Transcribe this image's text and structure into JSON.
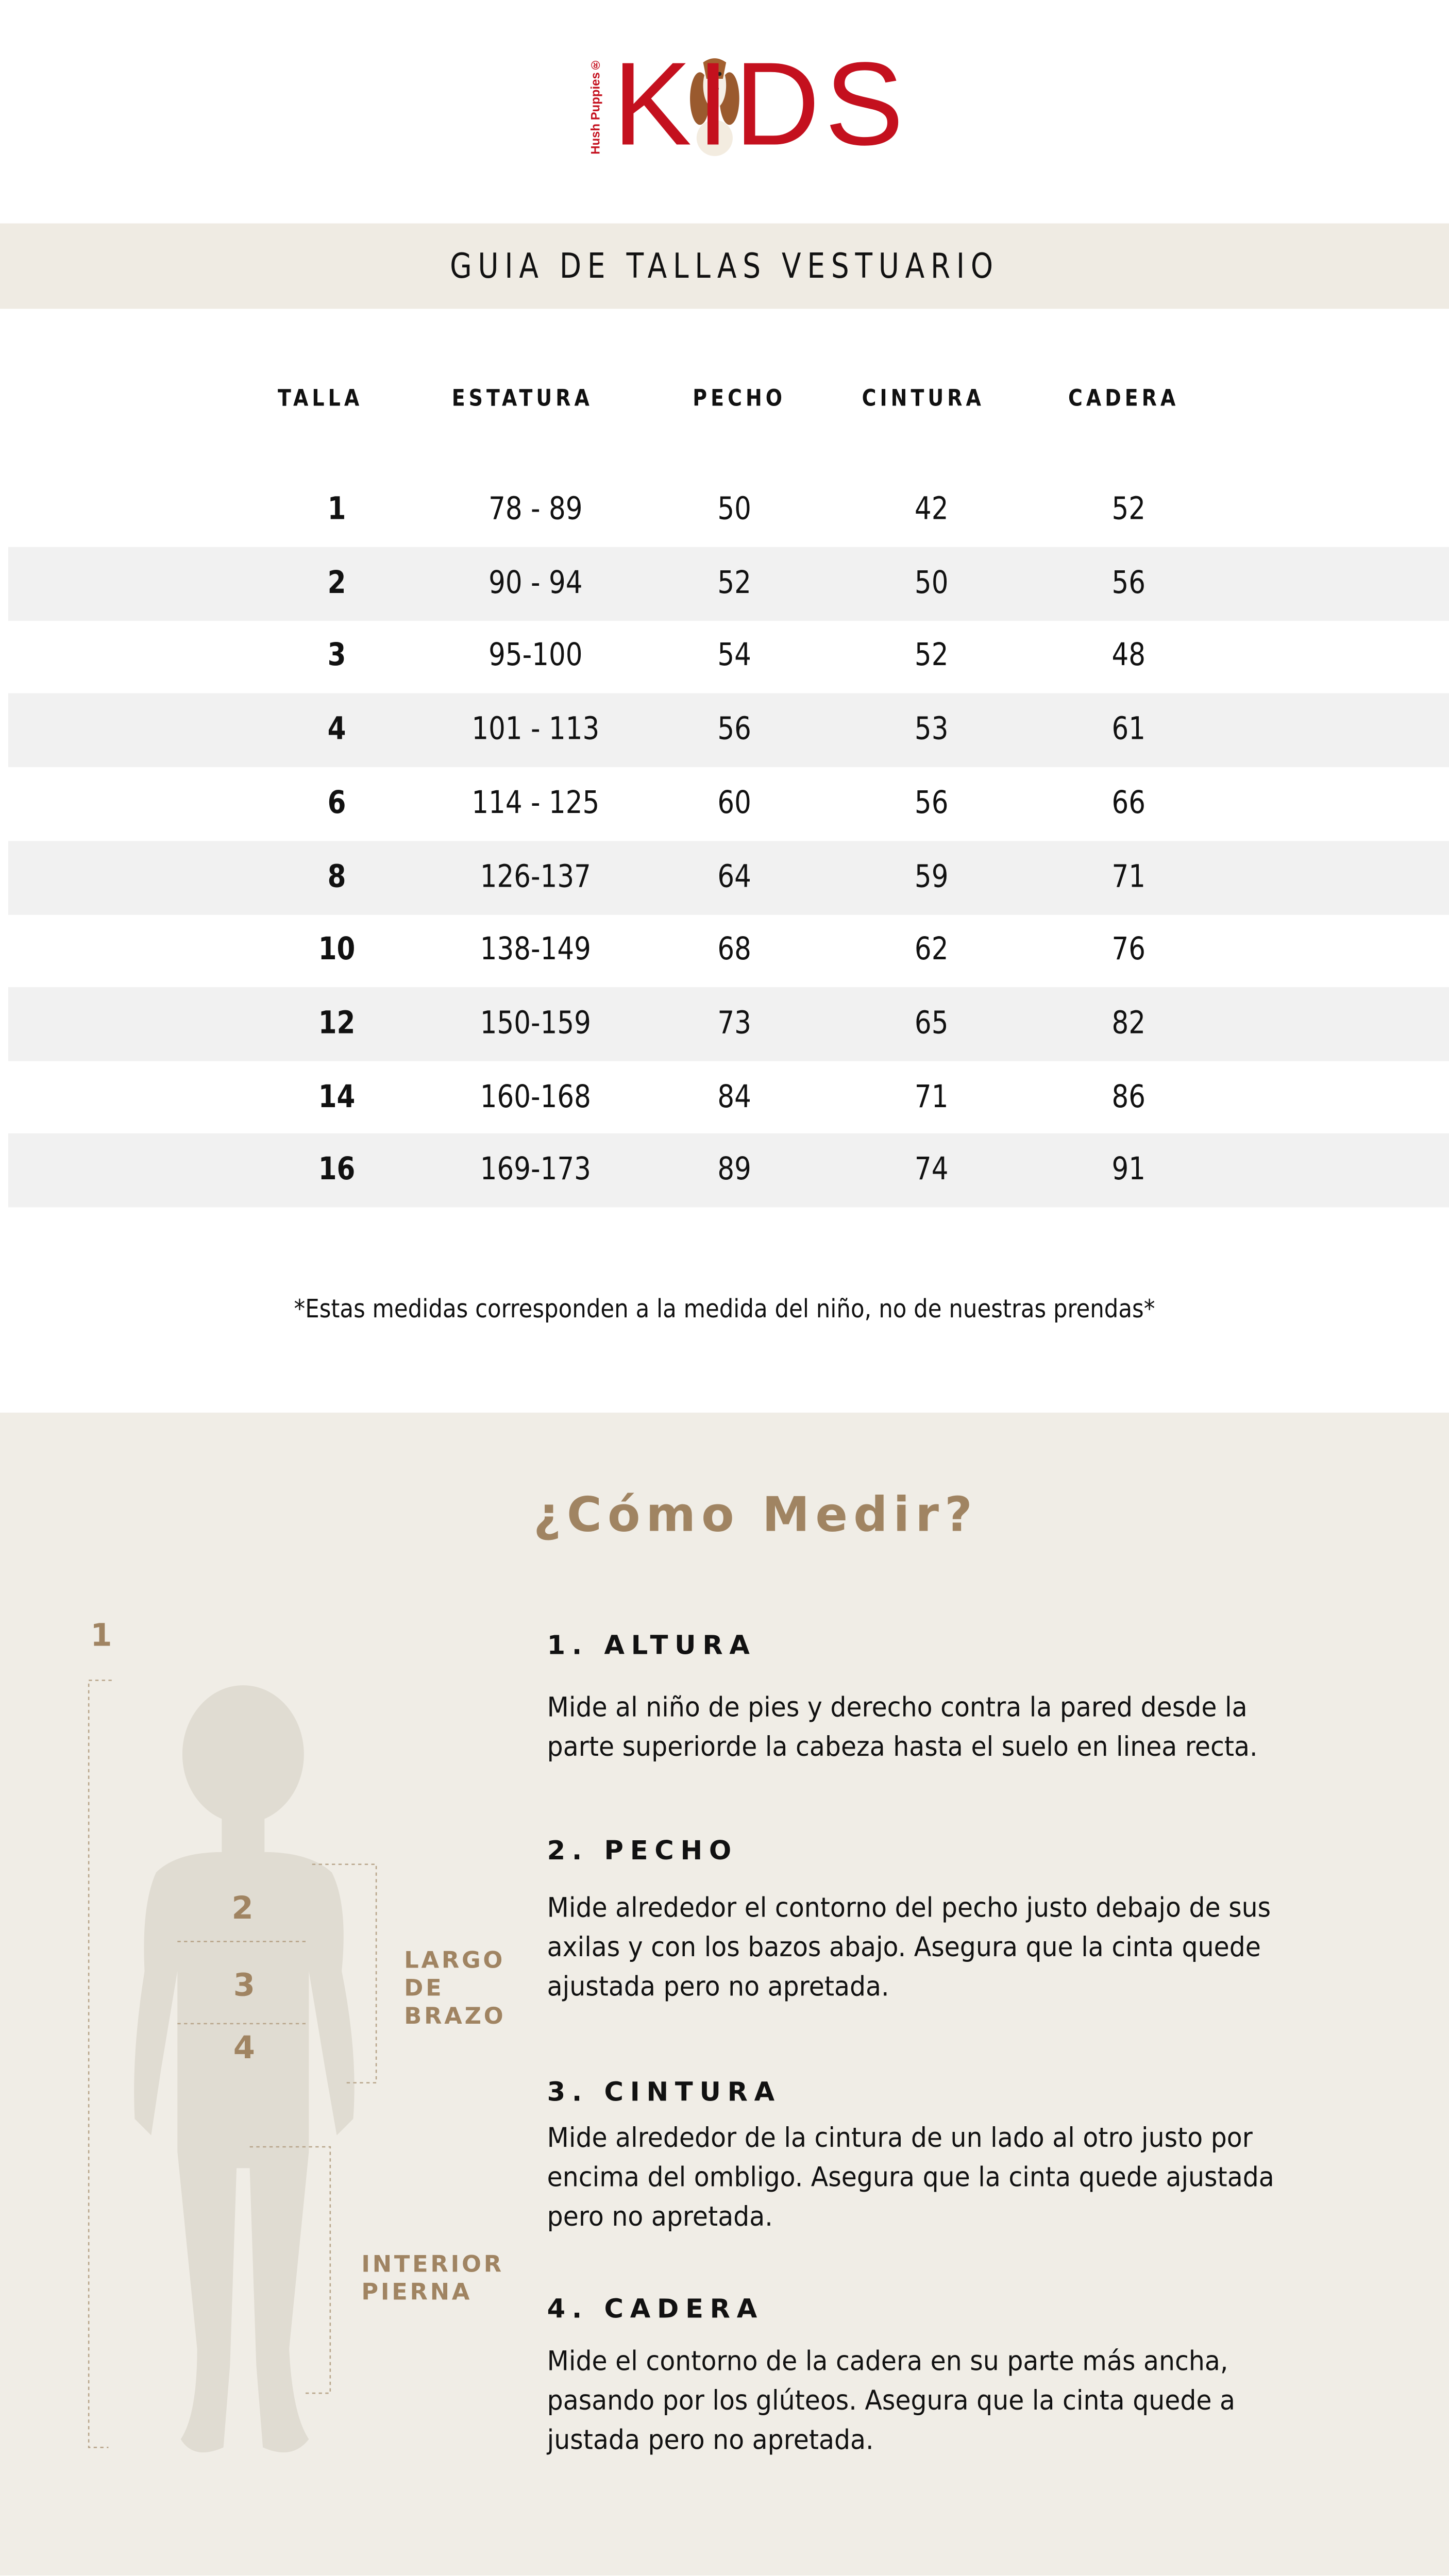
{
  "logo": {
    "brand": "Hush Puppies®",
    "word": "KIDS"
  },
  "header": {
    "title": "GUIA DE TALLAS VESTUARIO"
  },
  "table": {
    "columns": [
      "TALLA",
      "ESTATURA",
      "PECHO",
      "CINTURA",
      "CADERA"
    ],
    "rows": [
      [
        "1",
        "78 - 89",
        "50",
        "42",
        "52"
      ],
      [
        "2",
        "90 - 94",
        "52",
        "50",
        "56"
      ],
      [
        "3",
        "95-100",
        "54",
        "52",
        "48"
      ],
      [
        "4",
        "101 - 113",
        "56",
        "53",
        "61"
      ],
      [
        "6",
        "114 - 125",
        "60",
        "56",
        "66"
      ],
      [
        "8",
        "126-137",
        "64",
        "59",
        "71"
      ],
      [
        "10",
        "138-149",
        "68",
        "62",
        "76"
      ],
      [
        "12",
        "150-159",
        "73",
        "65",
        "82"
      ],
      [
        "14",
        "160-168",
        "84",
        "71",
        "86"
      ],
      [
        "16",
        "169-173",
        "89",
        "74",
        "91"
      ]
    ]
  },
  "note": "*Estas medidas corresponden a la medida del niño, no de nuestras prendas*",
  "howto": {
    "title": "¿Cómo Medir?",
    "diagram": {
      "n1": "1",
      "n2": "2",
      "n3": "3",
      "n4": "4",
      "arm": [
        "LARGO",
        "DE",
        "BRAZO"
      ],
      "leg": [
        "INTERIOR",
        "PIERNA"
      ]
    },
    "sections": [
      {
        "heading": "1. ALTURA",
        "lines": [
          "Mide al niño de pies y derecho contra la pared desde la",
          "parte superiorde la cabeza hasta el suelo en linea recta."
        ]
      },
      {
        "heading": "2. PECHO",
        "lines": [
          "Mide alrededor el contorno del pecho  justo debajo de sus",
          "axilas y con los bazos abajo. Asegura que la cinta quede",
          "ajustada pero no apretada."
        ]
      },
      {
        "heading": "3. CINTURA",
        "lines": [
          "Mide alrededor de la cintura de un lado al otro justo por",
          "encima del ombligo. Asegura que la cinta quede ajustada",
          "pero no apretada."
        ]
      },
      {
        "heading": "4. CADERA",
        "lines": [
          "Mide el contorno de la cadera en su parte más ancha,",
          "pasando por los glúteos. Asegura que la cinta quede a",
          "justada pero no apretada."
        ]
      }
    ]
  },
  "colors": {
    "brand_red": "#c4101e",
    "accent_tan": "#a08462",
    "band_bg": "#efebe3",
    "row_alt": "#f1f1f1"
  }
}
